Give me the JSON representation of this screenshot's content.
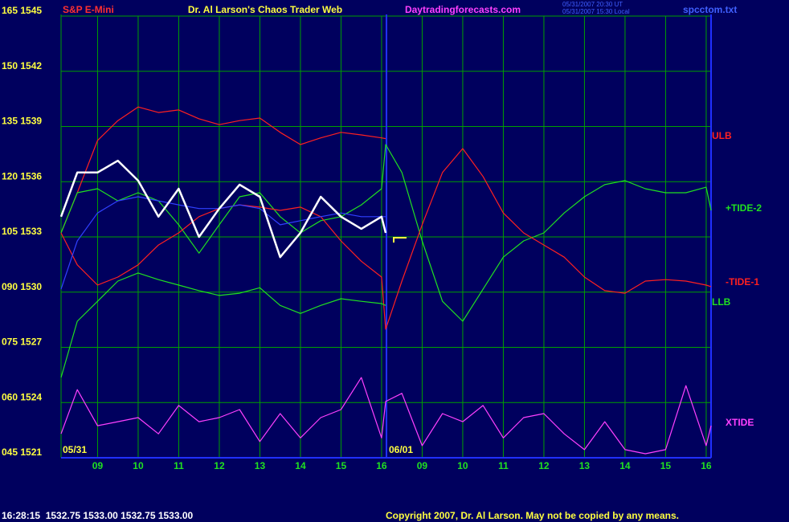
{
  "chart_data": {
    "type": "line",
    "title": "S&P E-Mini",
    "subtitle": "Dr. Al Larson's Chaos Trader Web",
    "site": "Daytradingforecasts.com",
    "timestamps": [
      "05/31/2007 20:30 UT",
      "05/31/2007 15:30 Local"
    ],
    "file": "spcctom.txt",
    "day_labels": [
      "05/31",
      "06/01"
    ],
    "status": "16:28:15  1532.75 1533.00 1532.75 1533.00",
    "copyright": "Copyright 2007, Dr. Al Larson. May not be copied by any means.",
    "grid": true,
    "xlim": [
      8.1,
      24.12
    ],
    "ylim": [
      45,
      165
    ],
    "xticks": [
      {
        "value": 9,
        "label": "09"
      },
      10,
      11,
      12,
      13,
      14,
      15,
      16,
      {
        "value": 17,
        "label": "09"
      },
      {
        "value": 18,
        "label": "10"
      },
      {
        "value": 19,
        "label": "11"
      },
      {
        "value": 20,
        "label": "12"
      },
      {
        "value": 21,
        "label": "13"
      },
      {
        "value": 22,
        "label": "14"
      },
      {
        "value": 23,
        "label": "15"
      },
      {
        "value": 24,
        "label": "16"
      }
    ],
    "yticks": [
      {
        "value": 165,
        "label": "165 1545"
      },
      {
        "value": 150,
        "label": "150 1542"
      },
      {
        "value": 135,
        "label": "135 1539"
      },
      {
        "value": 120,
        "label": "120 1536"
      },
      {
        "value": 105,
        "label": "105 1533"
      },
      {
        "value": 90,
        "label": "090 1530"
      },
      {
        "value": 75,
        "label": "075 1527"
      },
      {
        "value": 60,
        "label": "060 1524"
      },
      {
        "value": 45,
        "label": "045 1521"
      }
    ],
    "x": [
      8.1,
      8.5,
      9,
      9.5,
      10,
      10.5,
      11,
      11.5,
      12,
      12.5,
      13,
      13.5,
      14,
      14.5,
      15,
      15.5,
      16,
      16.1,
      16.5,
      17,
      17.5,
      18,
      18.5,
      19,
      19.5,
      20,
      20.5,
      21,
      21.5,
      22,
      22.5,
      23,
      23.5,
      24,
      24.12
    ],
    "series": [
      {
        "name": "ULB",
        "color": "#ff2020",
        "values": [
          106.1,
          117.0,
          131.2,
          136.6,
          140.3,
          138.8,
          139.5,
          137.1,
          135.5,
          136.6,
          137.3,
          133.4,
          130.1,
          131.9,
          133.4,
          132.7,
          131.9,
          131.7,
          null,
          null,
          null,
          null,
          null,
          null,
          null,
          null,
          null,
          null,
          null,
          null,
          null,
          null,
          null,
          null,
          null
        ]
      },
      {
        "name": "+TIDE-2",
        "color": "#20e020",
        "values": [
          106.1,
          117.0,
          118.1,
          114.8,
          117.0,
          114.8,
          108.3,
          100.6,
          108.3,
          115.9,
          117.0,
          110.5,
          106.1,
          109.4,
          110.5,
          113.7,
          118.1,
          130.1,
          122.5,
          103.9,
          87.5,
          82.1,
          90.8,
          99.5,
          103.9,
          106.1,
          111.5,
          115.9,
          119.2,
          120.3,
          118.1,
          117.0,
          117.0,
          118.5,
          112.2
        ]
      },
      {
        "name": "-TIDE-1",
        "color": "#ff2020",
        "values": [
          106.1,
          97.4,
          91.9,
          94.1,
          97.4,
          102.8,
          106.1,
          110.5,
          112.7,
          113.7,
          113.1,
          112.2,
          113.1,
          110.5,
          103.9,
          98.4,
          94.1,
          79.9,
          93.0,
          108.3,
          122.5,
          129.0,
          121.4,
          111.5,
          106.1,
          102.8,
          99.5,
          94.1,
          90.4,
          89.7,
          93.0,
          93.4,
          93.0,
          91.9,
          91.5
        ]
      },
      {
        "name": "LLB",
        "color": "#20e020",
        "values": [
          66.8,
          82.1,
          87.5,
          93.0,
          95.2,
          93.4,
          91.9,
          90.4,
          89.1,
          89.7,
          91.2,
          86.4,
          84.2,
          86.4,
          88.2,
          87.5,
          86.9,
          86.4,
          null,
          null,
          null,
          null,
          null,
          null,
          null,
          null,
          null,
          null,
          null,
          null,
          null,
          null,
          null,
          null,
          null
        ]
      },
      {
        "name": "XTIDE",
        "color": "#ff40ff",
        "values": [
          51.5,
          63.5,
          53.7,
          54.8,
          55.9,
          51.5,
          59.2,
          54.8,
          55.9,
          58.1,
          49.4,
          57.0,
          50.4,
          55.9,
          58.1,
          66.8,
          50.4,
          60.3,
          62.5,
          48.3,
          57.0,
          54.8,
          59.2,
          50.4,
          55.9,
          57.0,
          51.5,
          47.2,
          54.8,
          47.2,
          46.1,
          47.2,
          64.6,
          48.3,
          53.7
        ]
      },
      {
        "color": "#3040ff",
        "values": [
          90.8,
          103.9,
          111.5,
          114.8,
          115.9,
          114.8,
          113.7,
          112.7,
          112.7,
          113.7,
          112.7,
          108.3,
          109.4,
          110.5,
          111.5,
          110.5,
          110.5,
          110.5,
          null,
          null,
          null,
          null,
          null,
          null,
          null,
          null,
          null,
          null,
          null,
          null,
          null,
          null,
          null,
          null,
          null
        ]
      },
      {
        "color": "#ffffff",
        "values": [
          110.5,
          122.5,
          122.5,
          125.7,
          120.3,
          110.5,
          118.1,
          105.0,
          112.7,
          119.2,
          115.9,
          99.5,
          106.1,
          115.9,
          110.5,
          107.2,
          110.5,
          106.1,
          null,
          null,
          null,
          null,
          null,
          null,
          null,
          null,
          null,
          null,
          null,
          null,
          null,
          null,
          null,
          null,
          null
        ]
      }
    ]
  }
}
